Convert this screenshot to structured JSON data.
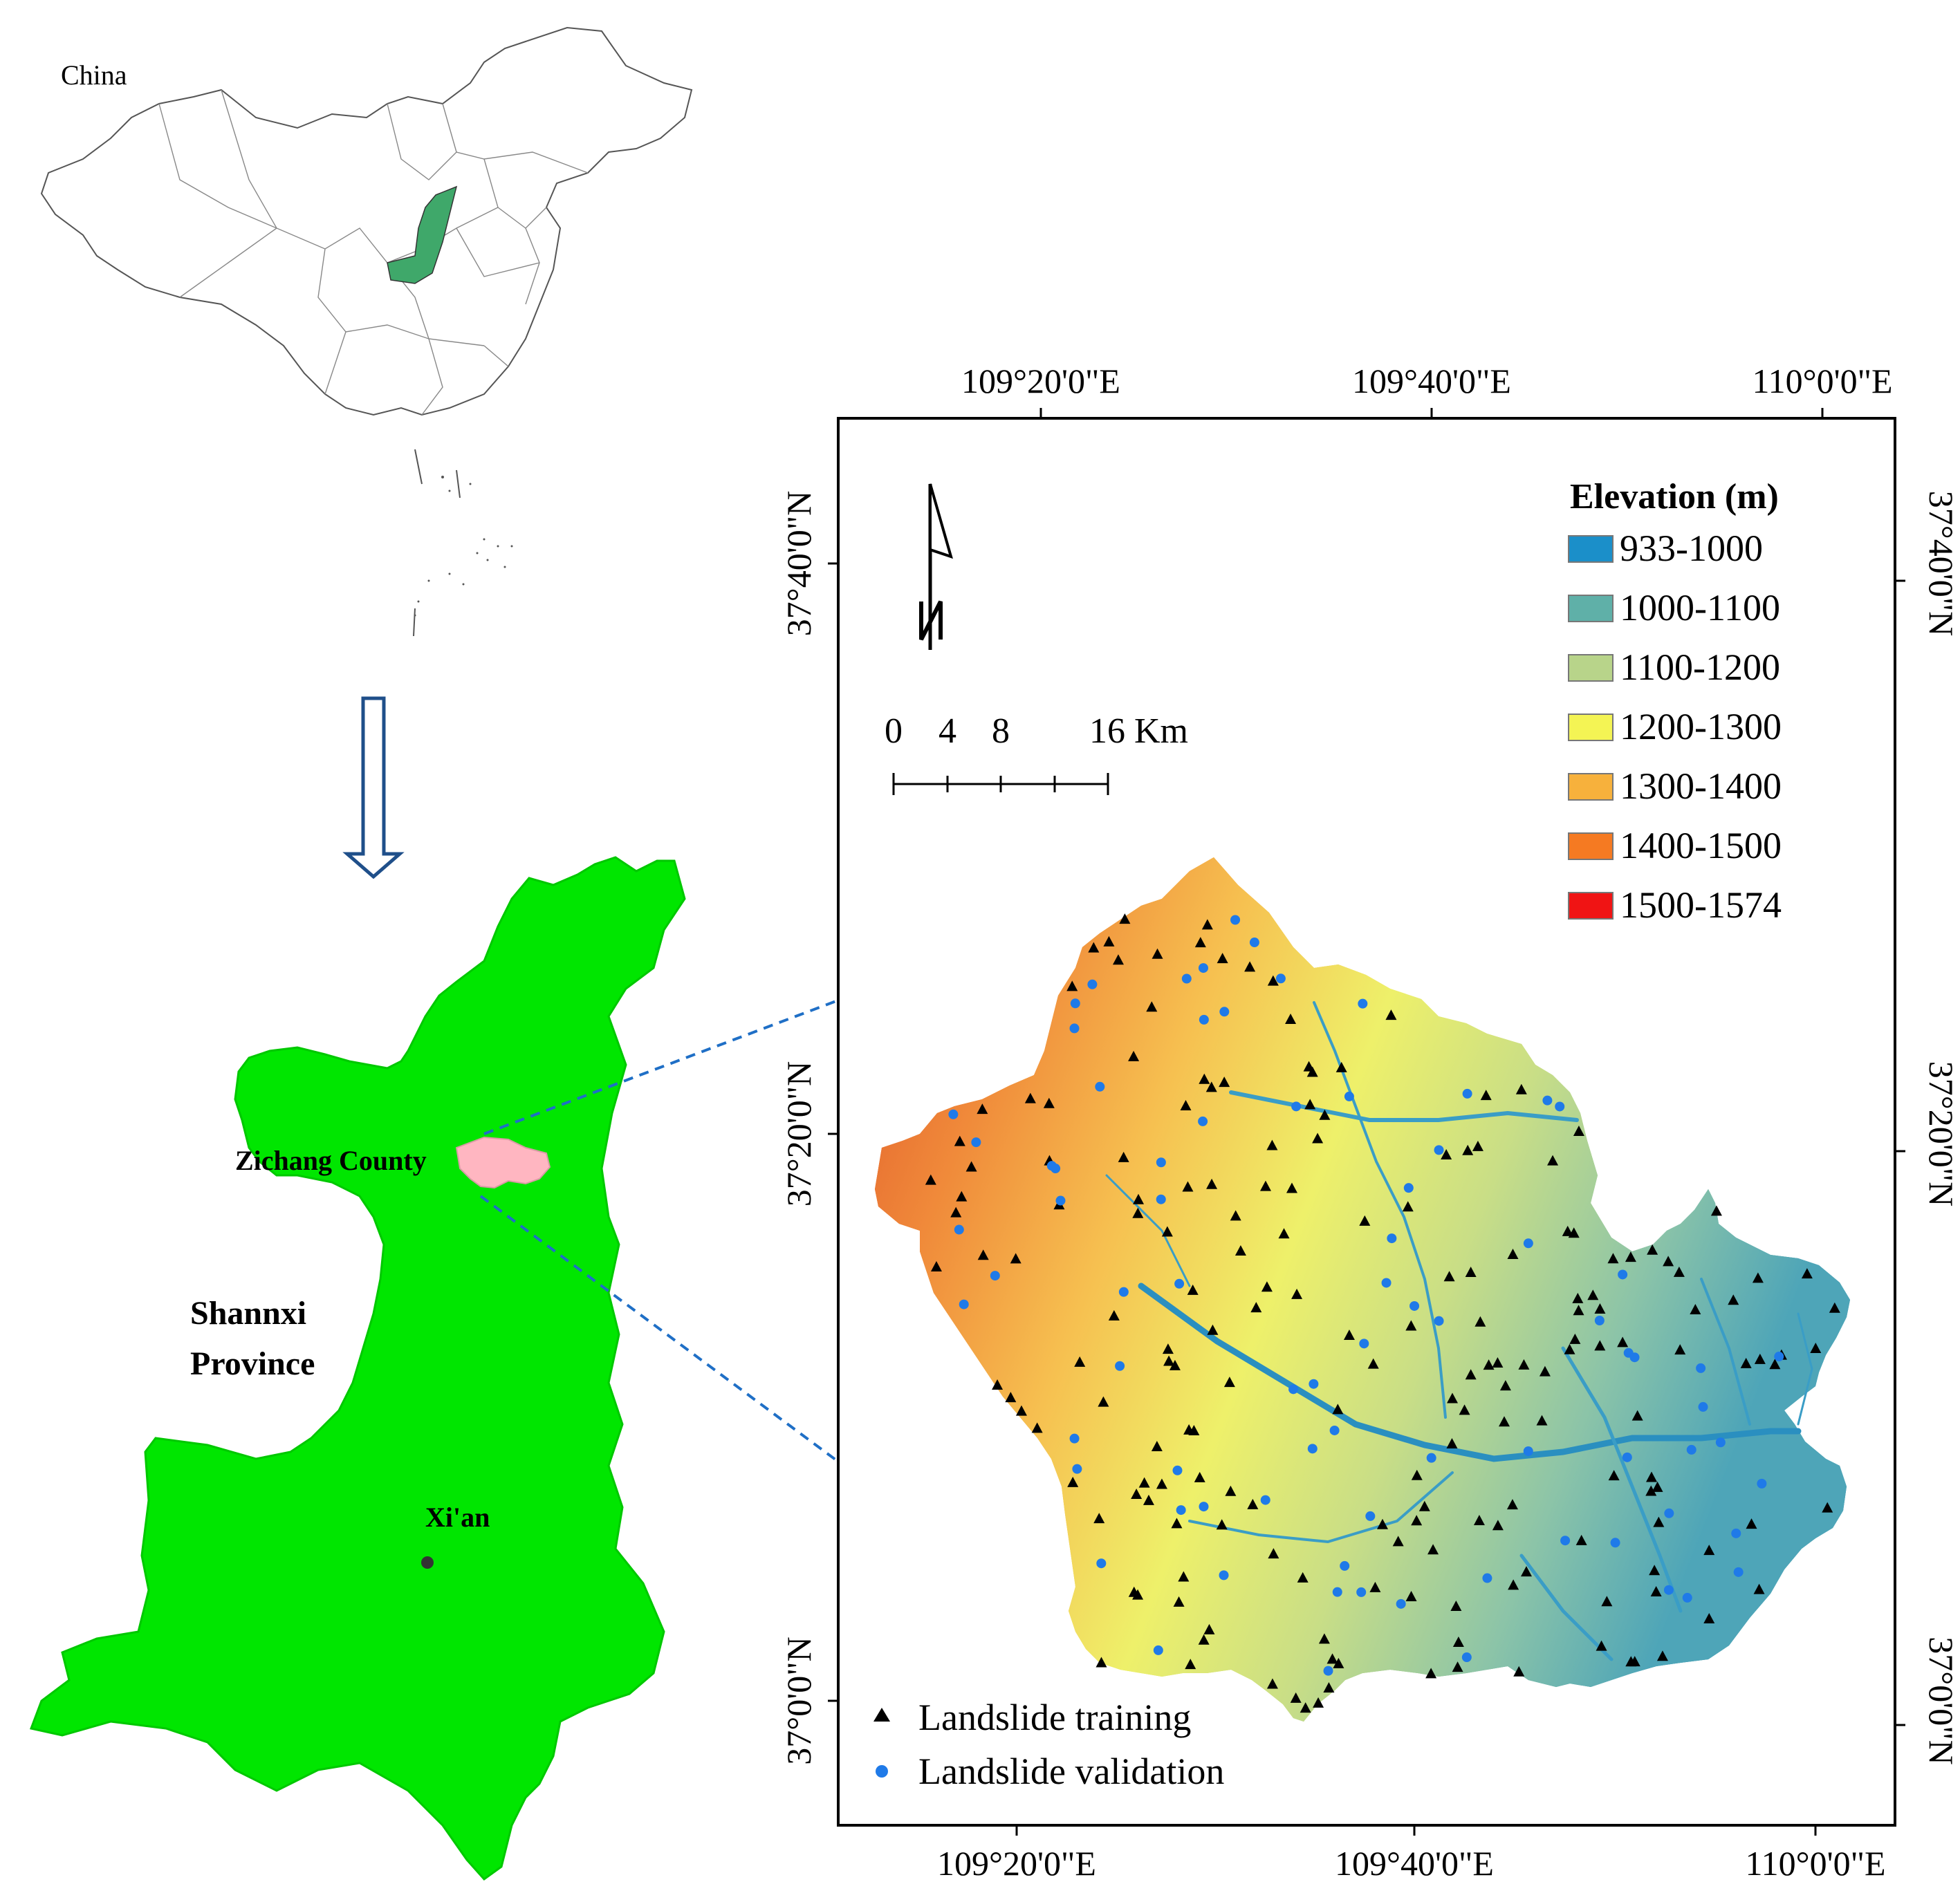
{
  "inset_china": {
    "label": "China"
  },
  "province": {
    "name_line1": "Shannxi",
    "name_line2": "Province",
    "county_label": "Zichang County",
    "capital_label": "Xi'an",
    "colors": {
      "province": "#00e600",
      "county": "#ffb6c1",
      "capital_dot": "#333333"
    }
  },
  "frame": {
    "top_lon_labels": [
      "109°20'0\"E",
      "109°40'0\"E",
      "110°0'0\"E"
    ],
    "bottom_lon_labels": [
      "109°20'0\"E",
      "109°40'0\"E",
      "110°0'0\"E"
    ],
    "left_lat_labels": [
      "37°40'0\"N",
      "37°20'0\"N",
      "37°0'0\"N"
    ],
    "right_lat_labels": [
      "37°40'0\"N",
      "37°20'0\"N",
      "37°0'0\"N"
    ]
  },
  "scale_bar": {
    "ticks": [
      "0",
      "4",
      "8",
      "16 Km"
    ]
  },
  "north_arrow": {
    "letter": "N"
  },
  "legend": {
    "title": "Elevation (m)",
    "items": [
      {
        "label": "933-1000",
        "color": "#1b8fc9"
      },
      {
        "label": "1000-1100",
        "color": "#5fb0a8"
      },
      {
        "label": "1100-1200",
        "color": "#b8d48a"
      },
      {
        "label": "1200-1300",
        "color": "#f4f454"
      },
      {
        "label": "1300-1400",
        "color": "#f7b13c"
      },
      {
        "label": "1400-1500",
        "color": "#f57a22"
      },
      {
        "label": "1500-1574",
        "color": "#f01414"
      }
    ]
  },
  "points_legend": {
    "training_label": "Landslide training",
    "validation_label": "Landslide validation",
    "training_color": "#000000",
    "validation_color": "#1f7ae8"
  },
  "arrow_color": "#1f6fc6"
}
